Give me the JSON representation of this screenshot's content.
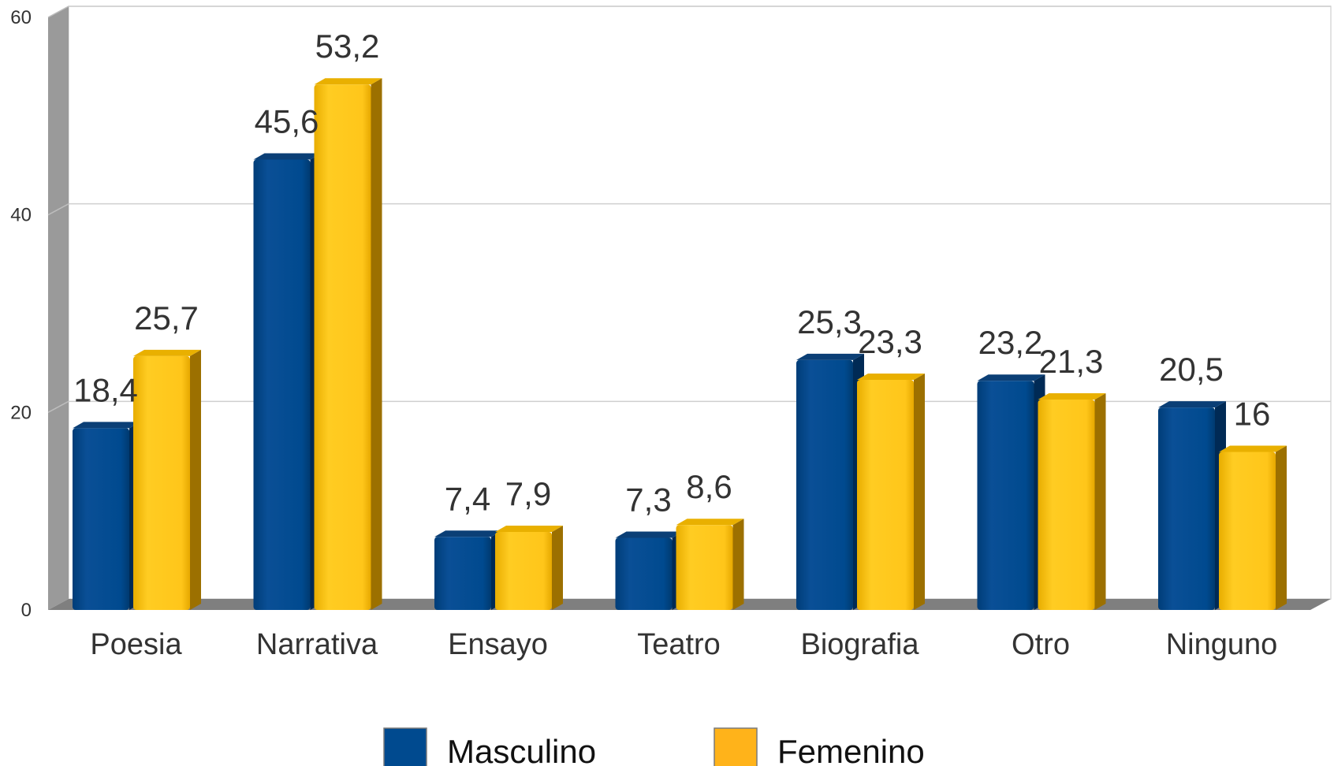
{
  "chart_data": {
    "type": "bar",
    "categories": [
      "Poesia",
      "Narrativa",
      "Ensayo",
      "Teatro",
      "Biografia",
      "Otro",
      "Ninguno"
    ],
    "series": [
      {
        "name": "Masculino",
        "values": [
          18.4,
          45.6,
          7.4,
          7.3,
          25.3,
          23.2,
          20.5
        ],
        "labels": [
          "18,4",
          "45,6",
          "7,4",
          "7,3",
          "25,3",
          "23,2",
          "20,5"
        ]
      },
      {
        "name": "Femenino",
        "values": [
          25.7,
          53.2,
          7.9,
          8.6,
          23.3,
          21.3,
          16
        ],
        "labels": [
          "25,7",
          "53,2",
          "7,9",
          "8,6",
          "23,3",
          "21,3",
          "16"
        ]
      }
    ],
    "ylim": [
      0,
      60
    ],
    "yticks": [
      0,
      20,
      40,
      60
    ],
    "ytick_labels": [
      "0",
      "20",
      "40",
      "60"
    ],
    "grid": true,
    "legend_position": "bottom",
    "colors": {
      "Masculino": "#004a8f",
      "Femenino": "#ffc61a"
    },
    "style": "3d-bars"
  }
}
